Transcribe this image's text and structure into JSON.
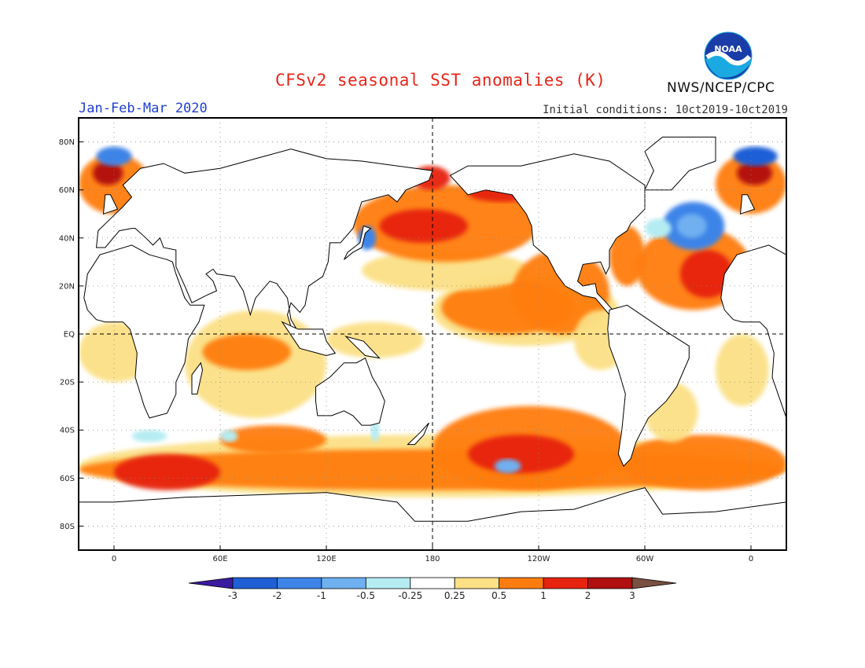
{
  "title": "CFSv2 seasonal SST anomalies (K)",
  "season": "Jan-Feb-Mar 2020",
  "initial_conditions": "Initial conditions: 10ct2019-10ct2019",
  "organization": "NWS/NCEP/CPC",
  "logo_text": "NOAA",
  "map": {
    "lat_ticks": [
      "80N",
      "60N",
      "40N",
      "20N",
      "EQ",
      "20S",
      "40S",
      "60S",
      "80S"
    ],
    "lon_ticks": [
      "0",
      "60E",
      "120E",
      "180",
      "120W",
      "60W",
      "0"
    ],
    "lon_range": [
      -20,
      380
    ],
    "lat_range": [
      -90,
      90
    ]
  },
  "colorbar": {
    "boundaries": [
      "-3",
      "-2",
      "-1",
      "-0.5",
      "-0.25",
      "0.25",
      "0.5",
      "1",
      "2",
      "3"
    ],
    "colors": [
      "#3a1a9e",
      "#1f5fd6",
      "#3d84e8",
      "#6fb0f0",
      "#b4ecf2",
      "#ffffff",
      "#fbe085",
      "#ff7d10",
      "#e6230f",
      "#b01010",
      "#7a5040"
    ],
    "unit": "K"
  },
  "regions": [
    {
      "name": "tropical-eastern-pacific",
      "lon": [
        180,
        285
      ],
      "lat": [
        -5,
        25
      ],
      "level": "0.5 to 1"
    },
    {
      "name": "north-pacific",
      "lon": [
        140,
        235
      ],
      "lat": [
        30,
        62
      ],
      "level": "1 to 2"
    },
    {
      "name": "southern-ocean",
      "lon": [
        0,
        360
      ],
      "lat": [
        -70,
        -45
      ],
      "level": "1 to 2"
    },
    {
      "name": "south-pacific",
      "lon": [
        180,
        290
      ],
      "lat": [
        -65,
        -30
      ],
      "level": "1 to 2"
    },
    {
      "name": "north-atlantic-cold",
      "lon": [
        310,
        345
      ],
      "lat": [
        35,
        60
      ],
      "level": "-1 to -0.5"
    },
    {
      "name": "indian-ocean",
      "lon": [
        40,
        110
      ],
      "lat": [
        -30,
        10
      ],
      "level": "0.25 to 1"
    }
  ]
}
